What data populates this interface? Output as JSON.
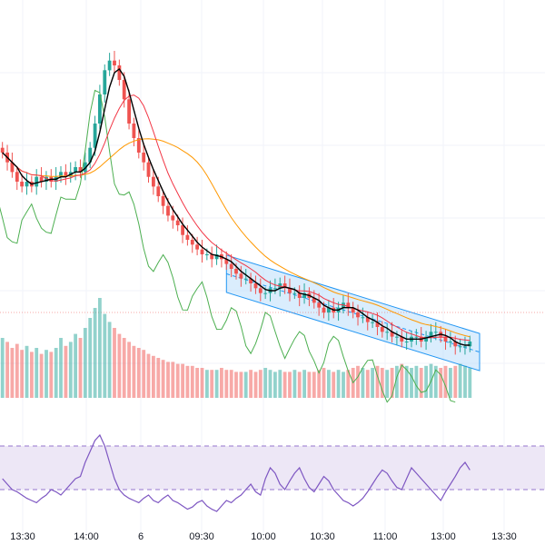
{
  "chart_data": {
    "type": "candlestick",
    "panels": [
      "price",
      "volume",
      "rsi"
    ],
    "x_ticks": [
      "13:30",
      "14:00",
      "6",
      "09:30",
      "10:00",
      "10:30",
      "11:00",
      "13:00",
      "13:30"
    ],
    "colors": {
      "up": "#26a69a",
      "down": "#ef5350",
      "ma_fast": "#000000",
      "ma_mid": "#f23645",
      "ma_slow": "#ff9800",
      "lagging_line": "#4caf50",
      "channel_fill": "#bbdefb",
      "channel_line": "#2196f3",
      "rsi_line": "#7e57c2",
      "rsi_band": "#ede7f6",
      "last_price_line": "#ef5350",
      "grid": "#f0f3fa"
    },
    "close": [
      76,
      74,
      72,
      70,
      69,
      70,
      69,
      71,
      70,
      71,
      70,
      71,
      72,
      71,
      72,
      73,
      72,
      74,
      77,
      82,
      88,
      93,
      95,
      94,
      91,
      87,
      82,
      79,
      76,
      74,
      71,
      69,
      67,
      65,
      63,
      62,
      61,
      59,
      58,
      57,
      56,
      55,
      55,
      54,
      55,
      54,
      53,
      52,
      51,
      50,
      50,
      49,
      48,
      47,
      47,
      48,
      48,
      49,
      48,
      47,
      47,
      46,
      47,
      46,
      45,
      44,
      43,
      44,
      43,
      44,
      45,
      44,
      43,
      42,
      42,
      41,
      41,
      40,
      39,
      39,
      38,
      38,
      37,
      37,
      38,
      38,
      37,
      38,
      39,
      39,
      38,
      37,
      37,
      36,
      36,
      36,
      37
    ],
    "volume": [
      30,
      28,
      25,
      27,
      24,
      26,
      23,
      25,
      22,
      24,
      23,
      25,
      30,
      26,
      28,
      32,
      30,
      35,
      40,
      45,
      50,
      42,
      38,
      35,
      32,
      30,
      28,
      26,
      25,
      24,
      22,
      21,
      20,
      19,
      18,
      18,
      17,
      17,
      16,
      16,
      15,
      15,
      14,
      14,
      14,
      15,
      14,
      14,
      13,
      13,
      13,
      14,
      13,
      14,
      15,
      14,
      13,
      14,
      13,
      13,
      14,
      13,
      14,
      13,
      13,
      14,
      15,
      14,
      13,
      14,
      13,
      14,
      15,
      16,
      15,
      14,
      15,
      16,
      15,
      14,
      15,
      16,
      17,
      16,
      15,
      16,
      15,
      16,
      17,
      16,
      15,
      16,
      15,
      16,
      17,
      16,
      15
    ],
    "rsi": [
      40,
      35,
      30,
      28,
      25,
      22,
      20,
      18,
      22,
      25,
      30,
      28,
      25,
      30,
      35,
      40,
      42,
      55,
      65,
      75,
      80,
      70,
      55,
      40,
      30,
      25,
      22,
      20,
      18,
      22,
      25,
      20,
      18,
      22,
      25,
      20,
      18,
      15,
      12,
      14,
      18,
      20,
      15,
      12,
      10,
      15,
      20,
      18,
      22,
      25,
      30,
      35,
      28,
      25,
      40,
      50,
      45,
      35,
      30,
      38,
      45,
      50,
      40,
      32,
      28,
      35,
      42,
      38,
      30,
      25,
      20,
      18,
      15,
      18,
      22,
      28,
      35,
      42,
      48,
      45,
      38,
      32,
      30,
      40,
      50,
      45,
      40,
      35,
      30,
      25,
      20,
      28,
      35,
      42,
      50,
      55,
      48
    ]
  }
}
